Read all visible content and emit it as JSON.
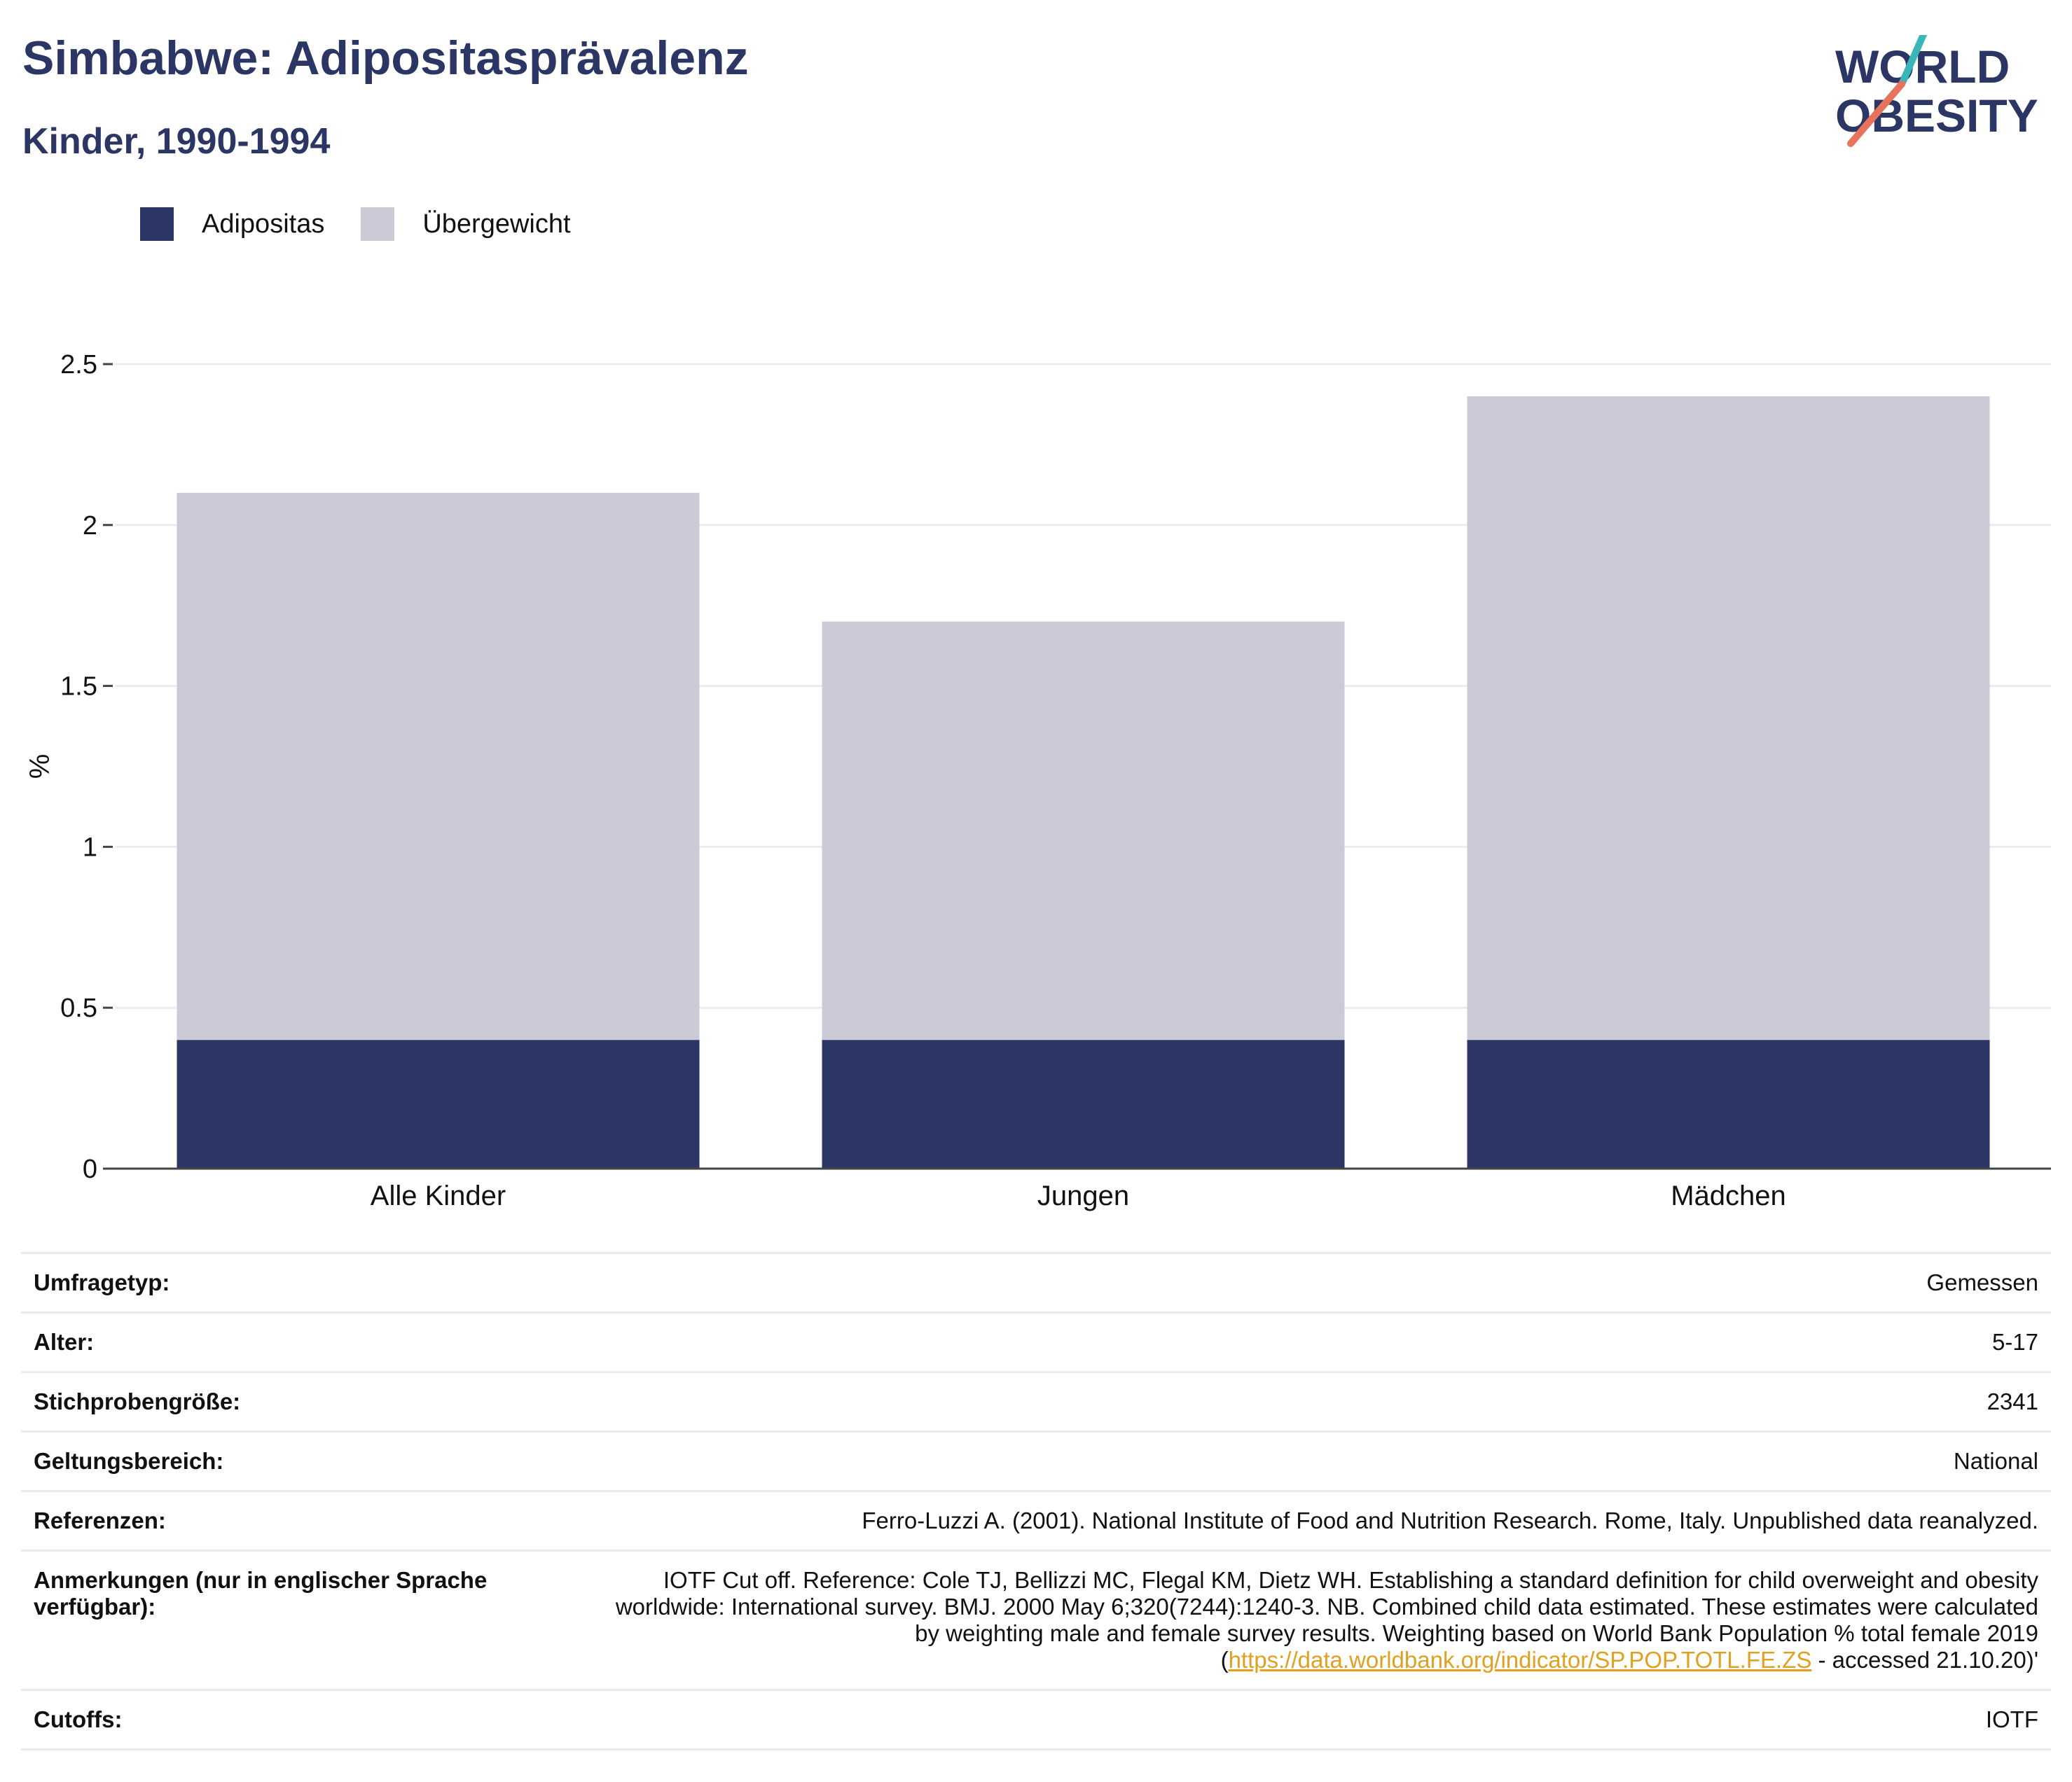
{
  "header": {
    "title": "Simbabwe: Adipositasprävalenz",
    "subtitle": "Kinder, 1990-1994"
  },
  "logo": {
    "line1": "WORLD",
    "line2": "OBESITY",
    "colors": {
      "text": "#2b3664",
      "slash_top": "#3bb6b8",
      "slash_bottom": "#e8735d"
    }
  },
  "colors": {
    "adipositas": "#2b3664",
    "uebergewicht": "#cacbd7",
    "grid": "#e9ecef",
    "axis": "#444444",
    "link": "#e0a020"
  },
  "chart_data": {
    "type": "bar",
    "stacked": true,
    "categories": [
      "Alle Kinder",
      "Jungen",
      "Mädchen"
    ],
    "series": [
      {
        "name": "Adipositas",
        "values": [
          0.4,
          0.4,
          0.4
        ]
      },
      {
        "name": "Übergewicht",
        "values": [
          1.7,
          1.3,
          2.0
        ]
      }
    ],
    "ylabel": "%",
    "xlabel": "",
    "ylim": [
      0,
      2.5
    ],
    "yticks": [
      0,
      0.5,
      1,
      1.5,
      2,
      2.5
    ],
    "ytick_labels": [
      "0",
      "0.5",
      "1",
      "1.5",
      "2",
      "2.5"
    ],
    "grid": true,
    "legend_position": "top-left"
  },
  "meta": {
    "rows": [
      {
        "label": "Umfragetyp:",
        "value": "Gemessen"
      },
      {
        "label": "Alter:",
        "value": "5-17"
      },
      {
        "label": "Stichprobengröße:",
        "value": "2341"
      },
      {
        "label": "Geltungsbereich:",
        "value": "National"
      },
      {
        "label": "Referenzen:",
        "value": "Ferro-Luzzi A. (2001). National Institute of Food and Nutrition Research. Rome, Italy. Unpublished data reanalyzed."
      }
    ],
    "notes": {
      "label": "Anmerkungen (nur in englischer Sprache verfügbar):",
      "text": "IOTF Cut off. Reference: Cole TJ, Bellizzi MC, Flegal KM, Dietz WH. Establishing a standard definition for child overweight and obesity worldwide: International survey. BMJ. 2000 May 6;320(7244):1240-3. NB. Combined child data estimated. These estimates were calculated by weighting male and female survey results. Weighting based on World Bank Population % total female 2019 (",
      "link": "https://data.worldbank.org/indicator/SP.POP.TOTL.FE.ZS",
      "suffix": " - accessed 21.10.20)'"
    },
    "cutoffs": {
      "label": "Cutoffs:",
      "value": "IOTF"
    }
  }
}
